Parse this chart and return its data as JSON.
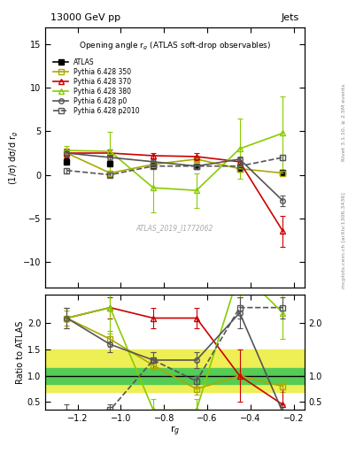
{
  "title_top": "13000 GeV pp",
  "title_right": "Jets",
  "plot_title": "Opening angle r$_g$ (ATLAS soft-drop observables)",
  "watermark": "ATLAS_2019_I1772062",
  "rivet_label": "Rivet 3.1.10, ≥ 2.5M events",
  "arxiv_label": "mcplots.cern.ch [arXiv:1306.3436]",
  "xlabel": "r$_g$",
  "ylabel_main": "(1/σ) dσ/d r$_g$",
  "ylabel_ratio": "Ratio to ATLAS",
  "xlim": [
    -1.35,
    -0.15
  ],
  "ylim_main": [
    -13,
    17
  ],
  "ylim_ratio": [
    0.35,
    2.55
  ],
  "xticks": [
    -1.2,
    -1.0,
    -0.8,
    -0.6,
    -0.4,
    -0.2
  ],
  "yticks_main": [
    -10,
    -5,
    0,
    5,
    10,
    15
  ],
  "yticks_ratio": [
    0.5,
    1.0,
    1.5,
    2.0
  ],
  "x_data": [
    -1.25,
    -1.05,
    -0.85,
    -0.65,
    -0.45,
    -0.25
  ],
  "atlas_y": [
    1.5,
    1.3,
    1.1,
    1.0,
    0.7,
    0.3
  ],
  "atlas_yerr": [
    0.35,
    0.2,
    0.2,
    0.2,
    0.2,
    0.3
  ],
  "py350_y": [
    2.5,
    0.2,
    1.2,
    1.8,
    0.7,
    0.2
  ],
  "py350_yerr": [
    0.4,
    0.3,
    0.2,
    0.2,
    0.2,
    0.2
  ],
  "py370_y": [
    2.5,
    2.5,
    2.2,
    2.1,
    1.5,
    -6.5
  ],
  "py370_yerr": [
    0.5,
    0.4,
    0.3,
    0.4,
    0.5,
    1.8
  ],
  "py380_y": [
    2.8,
    2.7,
    -1.5,
    -1.8,
    3.0,
    4.8
  ],
  "py380_yerr": [
    0.5,
    2.2,
    2.8,
    2.0,
    3.5,
    4.2
  ],
  "pyp0_y": [
    2.5,
    2.0,
    1.5,
    1.0,
    1.8,
    -3.0
  ],
  "pyp0_yerr": [
    0.4,
    0.3,
    0.25,
    0.2,
    0.3,
    0.6
  ],
  "pyp2010_y": [
    0.5,
    0.0,
    1.0,
    1.0,
    1.0,
    2.0
  ],
  "pyp2010_yerr": [
    0.3,
    0.3,
    0.2,
    0.2,
    0.2,
    0.3
  ],
  "ratio_py350": [
    2.1,
    1.7,
    1.2,
    0.75,
    1.0,
    0.8
  ],
  "ratio_py350_err": [
    0.15,
    0.15,
    0.1,
    0.1,
    0.1,
    0.1
  ],
  "ratio_py370": [
    2.1,
    2.3,
    2.1,
    2.1,
    1.0,
    0.45
  ],
  "ratio_py370_err": [
    0.2,
    0.2,
    0.2,
    0.2,
    0.5,
    0.3
  ],
  "ratio_py380": [
    2.1,
    2.3,
    0.35,
    0.35,
    3.0,
    2.2
  ],
  "ratio_py380_err": [
    0.2,
    0.5,
    0.2,
    0.2,
    0.5,
    0.5
  ],
  "ratio_pyp0": [
    2.1,
    1.6,
    1.3,
    1.3,
    2.2,
    0.3
  ],
  "ratio_pyp0_err": [
    0.2,
    0.15,
    0.15,
    0.15,
    0.3,
    0.15
  ],
  "ratio_pyp2010": [
    0.3,
    0.35,
    1.3,
    0.9,
    2.3,
    2.3
  ],
  "ratio_pyp2010_err": [
    0.15,
    0.1,
    0.15,
    0.1,
    0.2,
    0.2
  ],
  "ratio_band_green_lo": 0.85,
  "ratio_band_green_hi": 1.15,
  "ratio_band_yellow_lo": 0.7,
  "ratio_band_yellow_hi": 1.5,
  "color_atlas": "#000000",
  "color_py350": "#aaaa00",
  "color_py370": "#cc0000",
  "color_py380": "#88cc00",
  "color_pyp0": "#555555",
  "color_pyp2010": "#555555",
  "color_band_green": "#55cc55",
  "color_band_yellow": "#eeee55"
}
